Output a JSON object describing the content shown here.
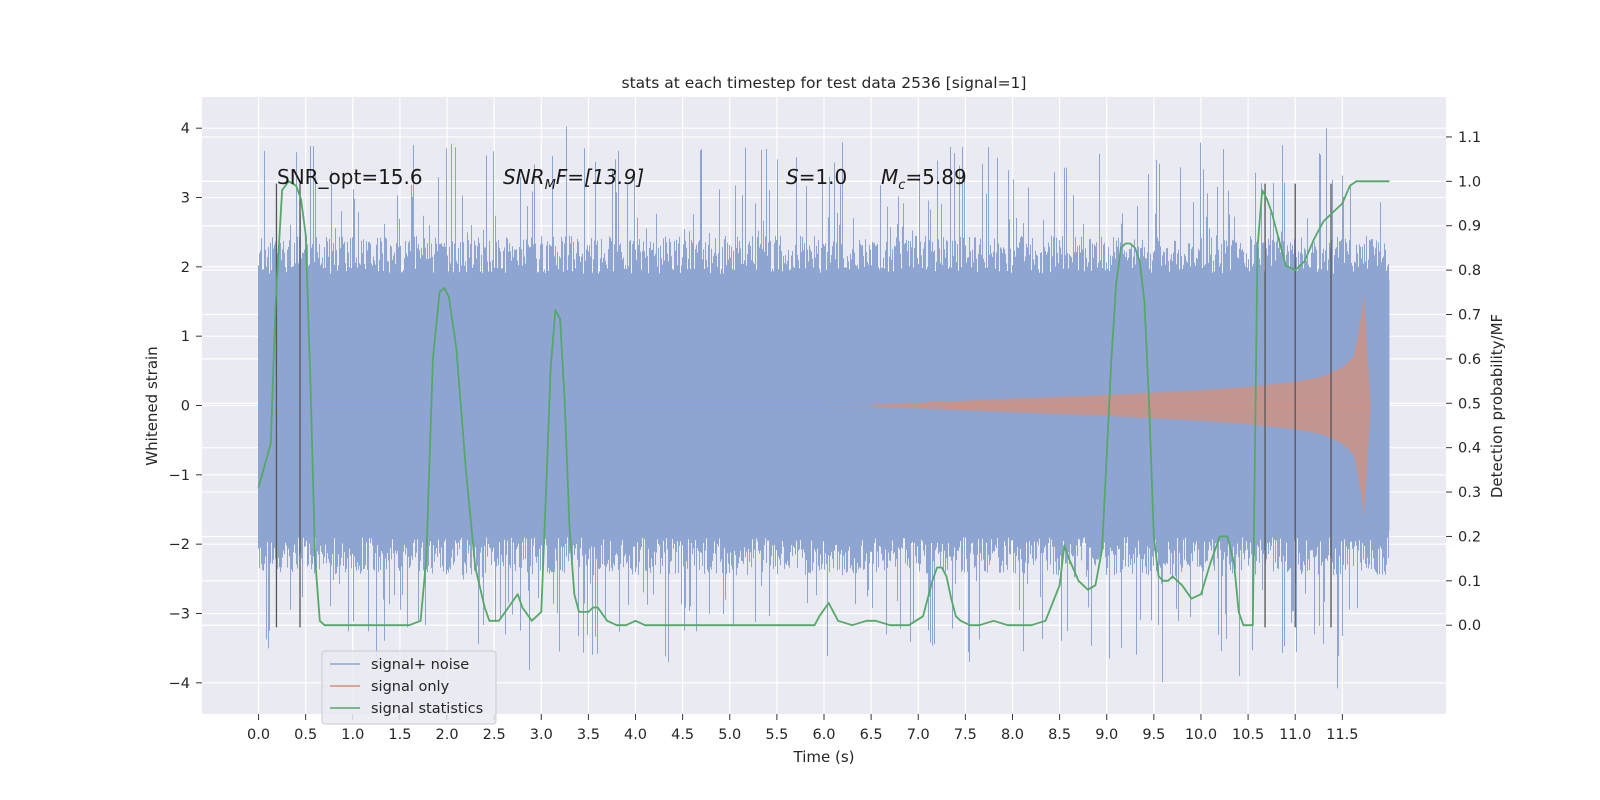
{
  "chart_data": {
    "type": "line",
    "title": "stats at each timestep for test data 2536 [signal=1]",
    "xlabel": "Time (s)",
    "ylabel": "Whitened strain",
    "ylabel_right": "Detection probability/MF",
    "xlim": [
      -0.6,
      12.6
    ],
    "ylim": [
      -4.45,
      4.45
    ],
    "ylim_right": [
      -0.2,
      1.19
    ],
    "x_ticks": [
      0.0,
      0.5,
      1.0,
      1.5,
      2.0,
      2.5,
      3.0,
      3.5,
      4.0,
      4.5,
      5.0,
      5.5,
      6.0,
      6.5,
      7.0,
      7.5,
      8.0,
      8.5,
      9.0,
      9.5,
      10.0,
      10.5,
      11.0,
      11.5
    ],
    "x_tick_labels": [
      "0.0",
      "0.5",
      "1.0",
      "1.5",
      "2.0",
      "2.5",
      "3.0",
      "3.5",
      "4.0",
      "4.5",
      "5.0",
      "5.5",
      "6.0",
      "6.5",
      "7.0",
      "7.5",
      "8.0",
      "8.5",
      "9.0",
      "9.5",
      "10.0",
      "10.5",
      "11.0",
      "11.5"
    ],
    "y_ticks": [
      -4,
      -3,
      -2,
      -1,
      0,
      1,
      2,
      3,
      4
    ],
    "y_tick_labels": [
      "−4",
      "−3",
      "−2",
      "−1",
      "0",
      "1",
      "2",
      "3",
      "4"
    ],
    "y_ticks_right": [
      0.0,
      0.1,
      0.2,
      0.3,
      0.4,
      0.5,
      0.6,
      0.7,
      0.8,
      0.9,
      1.0,
      1.1
    ],
    "y_tick_labels_right": [
      "0.0",
      "0.1",
      "0.2",
      "0.3",
      "0.4",
      "0.5",
      "0.6",
      "0.7",
      "0.8",
      "0.9",
      "1.0",
      "1.1"
    ],
    "grid": true,
    "legend_position": "lower-left",
    "annotations": {
      "snr_opt": "SNR_opt=15.6",
      "snr_mf_sym": "SNR",
      "snr_mf_sub": "M",
      "snr_mf_rest": "F=[13.9]",
      "s_sym": "S",
      "s_rest": "=1.0",
      "mc_sym": "M",
      "mc_sub": "c",
      "mc_rest": "=5.89"
    },
    "series": [
      {
        "name": "signal+ noise",
        "color": "#8fa5d1",
        "style": "noise",
        "x_range": [
          0.0,
          12.0
        ],
        "body_amplitude": 1.9,
        "spike_max": 4.1
      },
      {
        "name": "signal only",
        "color": "#d4907a",
        "style": "chirp",
        "x": [
          0.0,
          5.0,
          6.5,
          7.0,
          8.0,
          9.0,
          10.0,
          10.5,
          11.0,
          11.3,
          11.5,
          11.62,
          11.68,
          11.73,
          11.78,
          11.8
        ],
        "envelope": [
          0.0,
          0.0,
          0.01,
          0.04,
          0.1,
          0.15,
          0.22,
          0.27,
          0.34,
          0.42,
          0.55,
          0.7,
          1.1,
          1.6,
          0.5,
          0.0
        ]
      },
      {
        "name": "signal statistics",
        "color": "#55a868",
        "axis": "right",
        "x": [
          0.0,
          0.13,
          0.18,
          0.25,
          0.32,
          0.4,
          0.45,
          0.5,
          0.55,
          0.6,
          0.65,
          0.7,
          0.8,
          1.0,
          1.2,
          1.4,
          1.6,
          1.72,
          1.78,
          1.85,
          1.92,
          1.97,
          2.02,
          2.1,
          2.2,
          2.3,
          2.4,
          2.45,
          2.55,
          2.65,
          2.75,
          2.8,
          2.9,
          3.0,
          3.05,
          3.1,
          3.15,
          3.2,
          3.25,
          3.3,
          3.35,
          3.4,
          3.5,
          3.55,
          3.6,
          3.7,
          3.8,
          3.9,
          4.0,
          4.1,
          4.2,
          4.4,
          4.6,
          5.0,
          5.5,
          5.9,
          5.95,
          6.05,
          6.15,
          6.3,
          6.45,
          6.55,
          6.7,
          6.9,
          7.05,
          7.15,
          7.2,
          7.25,
          7.3,
          7.35,
          7.4,
          7.45,
          7.55,
          7.65,
          7.8,
          7.95,
          8.1,
          8.2,
          8.35,
          8.5,
          8.55,
          8.6,
          8.7,
          8.8,
          8.88,
          8.95,
          9.0,
          9.05,
          9.1,
          9.15,
          9.2,
          9.25,
          9.3,
          9.35,
          9.4,
          9.45,
          9.5,
          9.55,
          9.6,
          9.65,
          9.7,
          9.8,
          9.9,
          10.0,
          10.1,
          10.2,
          10.28,
          10.35,
          10.4,
          10.45,
          10.5,
          10.55,
          10.6,
          10.65,
          10.7,
          10.75,
          10.8,
          10.9,
          11.0,
          11.1,
          11.2,
          11.3,
          11.4,
          11.5,
          11.58,
          11.65,
          11.72,
          11.8,
          11.9,
          12.0
        ],
        "values": [
          0.31,
          0.41,
          0.72,
          0.98,
          1.0,
          0.99,
          0.96,
          0.88,
          0.55,
          0.15,
          0.01,
          0.0,
          0.0,
          0.0,
          0.0,
          0.0,
          0.0,
          0.01,
          0.15,
          0.6,
          0.75,
          0.76,
          0.74,
          0.62,
          0.35,
          0.13,
          0.04,
          0.01,
          0.01,
          0.04,
          0.07,
          0.04,
          0.01,
          0.03,
          0.3,
          0.58,
          0.71,
          0.69,
          0.5,
          0.22,
          0.07,
          0.03,
          0.03,
          0.04,
          0.04,
          0.01,
          0.0,
          0.0,
          0.01,
          0.0,
          0.0,
          0.0,
          0.0,
          0.0,
          0.0,
          0.0,
          0.02,
          0.05,
          0.01,
          0.0,
          0.01,
          0.01,
          0.0,
          0.0,
          0.02,
          0.1,
          0.13,
          0.13,
          0.11,
          0.06,
          0.02,
          0.01,
          0.0,
          0.0,
          0.01,
          0.0,
          0.0,
          0.0,
          0.01,
          0.09,
          0.18,
          0.15,
          0.1,
          0.08,
          0.09,
          0.17,
          0.38,
          0.6,
          0.77,
          0.85,
          0.86,
          0.86,
          0.85,
          0.82,
          0.73,
          0.5,
          0.2,
          0.11,
          0.1,
          0.1,
          0.11,
          0.09,
          0.06,
          0.07,
          0.14,
          0.2,
          0.2,
          0.14,
          0.03,
          0.0,
          0.0,
          0.0,
          0.85,
          0.98,
          0.96,
          0.93,
          0.89,
          0.81,
          0.8,
          0.82,
          0.87,
          0.91,
          0.93,
          0.95,
          0.99,
          1.0,
          1.0,
          1.0,
          1.0,
          1.0
        ]
      }
    ],
    "vertical_markers": {
      "x": [
        0.19,
        0.44,
        10.68,
        11.0,
        11.38
      ],
      "ymin": -3.2,
      "ymax": 3.2,
      "color": "#555555"
    }
  }
}
